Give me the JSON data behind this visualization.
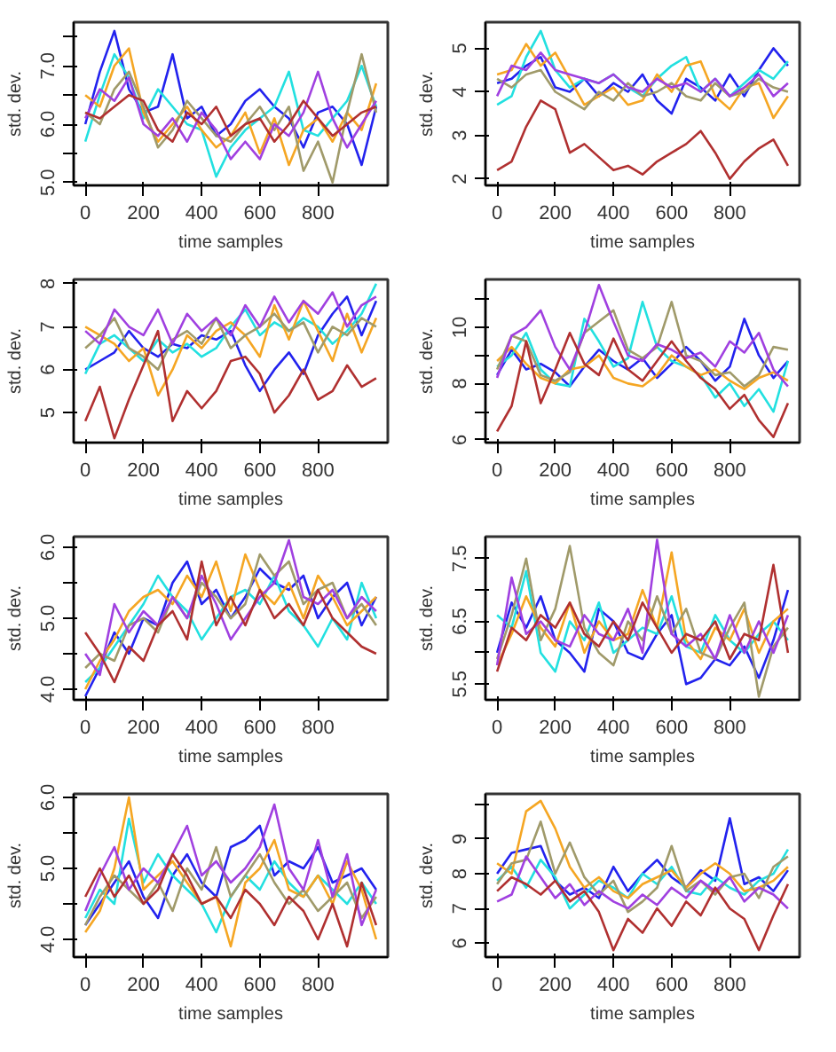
{
  "chart_data": [
    {
      "type": "line",
      "xlabel": "time samples",
      "ylabel": "std. dev.",
      "grid": false,
      "x": [
        0,
        50,
        100,
        150,
        200,
        250,
        300,
        350,
        400,
        450,
        500,
        550,
        600,
        650,
        700,
        750,
        800,
        850,
        900,
        950,
        1000
      ],
      "xlim": [
        -40,
        1040
      ],
      "xticks": [
        0,
        200,
        400,
        600,
        800
      ],
      "ylim": [
        4.95,
        7.75
      ],
      "yticks": [
        {
          "value": 5,
          "label": "5.0"
        },
        {
          "value": 5.5,
          "label": null
        },
        {
          "value": 6,
          "label": "6.0"
        },
        {
          "value": 6.5,
          "label": null
        },
        {
          "value": 7,
          "label": "7.0"
        },
        {
          "value": 7.5,
          "label": null
        }
      ],
      "series": [
        {
          "color": "#2222ee",
          "values": [
            6.0,
            6.9,
            7.6,
            6.6,
            6.2,
            6.3,
            7.2,
            6.1,
            6.3,
            5.8,
            6.0,
            6.4,
            6.6,
            6.3,
            6.1,
            5.6,
            6.2,
            6.3,
            6.0,
            5.3,
            6.3
          ]
        },
        {
          "color": "#22e0e0",
          "values": [
            5.7,
            6.5,
            7.2,
            6.8,
            6.1,
            6.6,
            6.3,
            6.0,
            5.9,
            5.1,
            5.6,
            5.9,
            6.1,
            6.3,
            6.9,
            5.9,
            5.8,
            6.1,
            6.4,
            7.0,
            6.3
          ]
        },
        {
          "color": "#f5a623",
          "values": [
            6.5,
            6.3,
            7.0,
            7.3,
            6.2,
            5.7,
            6.0,
            6.3,
            5.9,
            5.6,
            5.8,
            6.2,
            5.5,
            6.1,
            5.3,
            5.9,
            6.1,
            5.7,
            6.2,
            5.9,
            6.7
          ]
        },
        {
          "color": "#a09a6a",
          "values": [
            6.2,
            6.0,
            6.6,
            6.9,
            6.3,
            5.6,
            5.9,
            6.4,
            6.1,
            5.8,
            5.7,
            6.0,
            6.3,
            5.9,
            6.3,
            5.2,
            5.7,
            5.0,
            6.2,
            7.2,
            6.2
          ]
        },
        {
          "color": "#a040e0",
          "values": [
            6.1,
            6.6,
            6.4,
            6.8,
            6.0,
            5.8,
            6.1,
            5.7,
            6.2,
            5.9,
            5.4,
            5.7,
            5.4,
            6.0,
            5.8,
            6.2,
            6.9,
            6.1,
            5.6,
            6.0,
            6.4
          ]
        },
        {
          "color": "#b03030",
          "values": [
            6.2,
            6.1,
            6.3,
            6.5,
            6.4,
            5.9,
            5.7,
            6.2,
            6.0,
            6.3,
            5.8,
            6.0,
            6.1,
            5.7,
            6.0,
            6.4,
            6.1,
            5.8,
            6.0,
            6.2,
            6.3
          ]
        }
      ]
    },
    {
      "type": "line",
      "xlabel": "time samples",
      "ylabel": "std. dev.",
      "grid": false,
      "x": [
        0,
        50,
        100,
        150,
        200,
        250,
        300,
        350,
        400,
        450,
        500,
        550,
        600,
        650,
        700,
        750,
        800,
        850,
        900,
        950,
        1000
      ],
      "xlim": [
        -40,
        1040
      ],
      "xticks": [
        0,
        200,
        400,
        600,
        800
      ],
      "ylim": [
        1.85,
        5.6
      ],
      "yticks": [
        2,
        3,
        4,
        5
      ],
      "series": [
        {
          "color": "#2222ee",
          "values": [
            4.2,
            4.3,
            4.6,
            4.8,
            4.1,
            4.0,
            4.3,
            3.9,
            4.2,
            4.0,
            4.4,
            3.8,
            3.5,
            4.3,
            4.1,
            3.8,
            4.4,
            3.9,
            4.5,
            5.0,
            4.6
          ]
        },
        {
          "color": "#22e0e0",
          "values": [
            3.7,
            3.9,
            4.8,
            5.4,
            4.5,
            4.1,
            4.3,
            4.2,
            4.4,
            4.1,
            3.9,
            4.3,
            4.6,
            4.8,
            4.0,
            4.3,
            3.9,
            4.2,
            4.5,
            4.3,
            4.7
          ]
        },
        {
          "color": "#f5a623",
          "values": [
            4.4,
            4.5,
            5.1,
            4.6,
            4.9,
            4.3,
            3.7,
            3.9,
            4.1,
            3.7,
            3.8,
            4.4,
            4.0,
            4.6,
            4.7,
            3.9,
            3.6,
            4.1,
            4.2,
            3.4,
            3.9
          ]
        },
        {
          "color": "#a09a6a",
          "values": [
            4.3,
            4.1,
            4.4,
            4.5,
            4.0,
            3.8,
            3.6,
            4.0,
            3.8,
            4.2,
            3.9,
            4.0,
            4.2,
            3.9,
            3.8,
            4.2,
            3.9,
            4.0,
            4.3,
            4.1,
            4.0
          ]
        },
        {
          "color": "#a040e0",
          "values": [
            3.9,
            4.6,
            4.5,
            4.9,
            4.5,
            4.4,
            4.3,
            4.2,
            4.4,
            4.1,
            4.0,
            4.3,
            4.1,
            4.2,
            4.0,
            4.3,
            3.9,
            4.1,
            4.4,
            3.9,
            4.2
          ]
        },
        {
          "color": "#b03030",
          "values": [
            2.2,
            2.4,
            3.2,
            3.8,
            3.6,
            2.6,
            2.8,
            2.5,
            2.2,
            2.3,
            2.1,
            2.4,
            2.6,
            2.8,
            3.1,
            2.6,
            2.0,
            2.4,
            2.7,
            2.9,
            2.3
          ]
        }
      ]
    },
    {
      "type": "line",
      "xlabel": "time samples",
      "ylabel": "std. dev.",
      "grid": false,
      "x": [
        0,
        50,
        100,
        150,
        200,
        250,
        300,
        350,
        400,
        450,
        500,
        550,
        600,
        650,
        700,
        750,
        800,
        850,
        900,
        950,
        1000
      ],
      "xlim": [
        -40,
        1040
      ],
      "xticks": [
        0,
        200,
        400,
        600,
        800
      ],
      "ylim": [
        4.3,
        8.1
      ],
      "yticks": [
        5,
        6,
        7,
        8
      ],
      "series": [
        {
          "color": "#2222ee",
          "values": [
            6.0,
            6.2,
            6.4,
            6.9,
            6.5,
            6.3,
            6.6,
            6.5,
            6.8,
            6.7,
            6.9,
            6.1,
            5.5,
            6.0,
            6.4,
            5.9,
            6.8,
            7.3,
            7.7,
            6.8,
            7.6
          ]
        },
        {
          "color": "#22e0e0",
          "values": [
            5.9,
            6.6,
            6.8,
            6.5,
            6.2,
            6.7,
            6.4,
            6.6,
            6.3,
            6.5,
            7.0,
            7.4,
            6.8,
            7.1,
            6.9,
            7.2,
            7.0,
            6.6,
            6.9,
            7.3,
            8.0
          ]
        },
        {
          "color": "#f5a623",
          "values": [
            7.0,
            6.8,
            6.6,
            6.2,
            6.5,
            5.4,
            6.0,
            6.8,
            6.5,
            6.9,
            7.1,
            6.8,
            6.3,
            7.5,
            6.7,
            7.6,
            6.9,
            6.2,
            7.3,
            6.4,
            7.2
          ]
        },
        {
          "color": "#a09a6a",
          "values": [
            6.5,
            6.8,
            7.2,
            6.5,
            6.3,
            6.0,
            6.7,
            6.9,
            6.6,
            7.2,
            6.5,
            6.8,
            7.0,
            7.3,
            6.9,
            7.1,
            6.4,
            7.0,
            6.8,
            7.2,
            7.0
          ]
        },
        {
          "color": "#a040e0",
          "values": [
            6.9,
            6.6,
            7.4,
            7.0,
            6.8,
            7.4,
            6.6,
            7.3,
            6.9,
            7.2,
            6.8,
            7.5,
            7.0,
            7.7,
            7.1,
            7.6,
            7.3,
            7.8,
            7.0,
            7.5,
            7.7
          ]
        },
        {
          "color": "#b03030",
          "values": [
            4.8,
            5.6,
            4.4,
            5.3,
            6.1,
            6.9,
            4.8,
            5.5,
            5.1,
            5.5,
            6.2,
            6.3,
            5.9,
            5.0,
            5.4,
            6.0,
            5.3,
            5.5,
            6.1,
            5.6,
            5.8
          ]
        }
      ]
    },
    {
      "type": "line",
      "xlabel": "time samples",
      "ylabel": "std. dev.",
      "grid": false,
      "x": [
        0,
        50,
        100,
        150,
        200,
        250,
        300,
        350,
        400,
        450,
        500,
        550,
        600,
        650,
        700,
        750,
        800,
        850,
        900,
        950,
        1000
      ],
      "xlim": [
        -40,
        1040
      ],
      "xticks": [
        0,
        200,
        400,
        600,
        800
      ],
      "ylim": [
        5.9,
        11.7
      ],
      "yticks": [
        6,
        {
          "value": 7,
          "label": null
        },
        8,
        {
          "value": 9,
          "label": null
        },
        10,
        {
          "value": 11,
          "label": null
        }
      ],
      "series": [
        {
          "color": "#2222ee",
          "values": [
            8.3,
            9.2,
            8.5,
            8.7,
            8.4,
            7.9,
            8.6,
            9.2,
            8.8,
            8.5,
            8.9,
            8.2,
            8.7,
            9.3,
            8.8,
            8.1,
            8.6,
            10.3,
            9.0,
            8.2,
            8.8
          ]
        },
        {
          "color": "#22e0e0",
          "values": [
            8.6,
            9.0,
            9.8,
            8.5,
            8.0,
            7.9,
            10.3,
            9.5,
            8.6,
            8.9,
            10.9,
            9.3,
            8.8,
            8.6,
            8.3,
            7.5,
            8.0,
            7.2,
            7.8,
            7.0,
            8.8
          ]
        },
        {
          "color": "#f5a623",
          "values": [
            8.8,
            9.3,
            8.7,
            8.2,
            8.0,
            8.5,
            8.6,
            9.0,
            8.2,
            8.0,
            7.9,
            8.3,
            9.0,
            8.6,
            8.3,
            8.5,
            8.1,
            7.8,
            8.2,
            8.4,
            8.1
          ]
        },
        {
          "color": "#a09a6a",
          "values": [
            8.5,
            9.7,
            9.5,
            8.3,
            8.1,
            8.4,
            9.8,
            10.2,
            10.6,
            9.2,
            8.9,
            9.3,
            10.9,
            9.0,
            8.8,
            8.3,
            8.4,
            7.9,
            8.3,
            9.3,
            9.2
          ]
        },
        {
          "color": "#a040e0",
          "values": [
            8.2,
            9.7,
            10.0,
            10.6,
            9.3,
            8.5,
            9.8,
            11.5,
            10.2,
            9.0,
            8.8,
            9.4,
            9.2,
            8.9,
            9.1,
            8.6,
            9.5,
            9.1,
            9.8,
            8.5,
            7.9
          ]
        },
        {
          "color": "#b03030",
          "values": [
            6.3,
            7.2,
            9.5,
            7.3,
            8.5,
            9.8,
            8.7,
            8.3,
            9.6,
            8.5,
            8.1,
            8.8,
            9.5,
            8.8,
            8.2,
            7.8,
            7.1,
            7.6,
            6.7,
            6.1,
            7.3
          ]
        }
      ]
    },
    {
      "type": "line",
      "xlabel": "time samples",
      "ylabel": "std. dev.",
      "grid": false,
      "x": [
        0,
        50,
        100,
        150,
        200,
        250,
        300,
        350,
        400,
        450,
        500,
        550,
        600,
        650,
        700,
        750,
        800,
        850,
        900,
        950,
        1000
      ],
      "xlim": [
        -40,
        1040
      ],
      "xticks": [
        0,
        200,
        400,
        600,
        800
      ],
      "ylim": [
        3.85,
        6.15
      ],
      "yticks": [
        {
          "value": 4,
          "label": "4.0"
        },
        {
          "value": 4.5,
          "label": null
        },
        {
          "value": 5,
          "label": "5.0"
        },
        {
          "value": 5.5,
          "label": null
        },
        {
          "value": 6,
          "label": "6.0"
        }
      ],
      "series": [
        {
          "color": "#2222ee",
          "values": [
            3.9,
            4.3,
            4.8,
            4.5,
            5.0,
            4.9,
            5.5,
            5.8,
            5.2,
            5.4,
            5.0,
            5.3,
            5.7,
            5.5,
            5.4,
            5.6,
            5.0,
            5.3,
            5.5,
            4.9,
            5.3
          ]
        },
        {
          "color": "#22e0e0",
          "values": [
            4.1,
            4.3,
            4.6,
            4.9,
            5.2,
            5.6,
            5.3,
            5.1,
            4.7,
            5.0,
            5.3,
            5.4,
            5.2,
            5.6,
            5.1,
            4.9,
            4.6,
            5.0,
            4.7,
            5.5,
            5.0
          ]
        },
        {
          "color": "#f5a623",
          "values": [
            4.0,
            4.4,
            4.7,
            5.1,
            5.3,
            5.4,
            5.2,
            5.6,
            5.3,
            5.8,
            5.1,
            5.9,
            5.4,
            5.2,
            5.5,
            5.0,
            5.6,
            5.3,
            4.9,
            5.1,
            5.3
          ]
        },
        {
          "color": "#a09a6a",
          "values": [
            4.3,
            4.5,
            4.4,
            4.9,
            5.0,
            4.8,
            5.3,
            5.0,
            5.5,
            5.3,
            5.0,
            5.2,
            5.9,
            5.6,
            5.8,
            5.2,
            5.4,
            5.5,
            5.0,
            5.2,
            4.9
          ]
        },
        {
          "color": "#a040e0",
          "values": [
            4.5,
            4.2,
            5.2,
            4.8,
            5.1,
            4.9,
            5.3,
            5.0,
            5.6,
            5.2,
            4.7,
            5.0,
            5.3,
            5.5,
            6.1,
            5.3,
            5.2,
            5.4,
            5.0,
            5.3,
            5.1
          ]
        },
        {
          "color": "#b03030",
          "values": [
            4.8,
            4.5,
            4.1,
            4.6,
            4.4,
            4.9,
            5.1,
            4.7,
            5.8,
            4.9,
            5.3,
            4.9,
            5.4,
            5.0,
            5.2,
            4.9,
            5.4,
            5.0,
            4.8,
            4.6,
            4.5
          ]
        }
      ]
    },
    {
      "type": "line",
      "xlabel": "time samples",
      "ylabel": "std. dev.",
      "grid": false,
      "x": [
        0,
        50,
        100,
        150,
        200,
        250,
        300,
        350,
        400,
        450,
        500,
        550,
        600,
        650,
        700,
        750,
        800,
        850,
        900,
        950,
        1000
      ],
      "xlim": [
        -40,
        1040
      ],
      "xticks": [
        0,
        200,
        400,
        600,
        800
      ],
      "ylim": [
        5.25,
        7.85
      ],
      "yticks": [
        5.5,
        {
          "value": 6,
          "label": null
        },
        6.5,
        {
          "value": 7,
          "label": null
        },
        7.5
      ],
      "series": [
        {
          "color": "#2222ee",
          "values": [
            6.0,
            6.8,
            6.4,
            6.9,
            6.2,
            6.0,
            5.7,
            6.7,
            6.5,
            6.0,
            5.9,
            6.3,
            6.6,
            5.5,
            5.6,
            5.9,
            5.8,
            6.1,
            5.6,
            6.2,
            7.0
          ]
        },
        {
          "color": "#22e0e0",
          "values": [
            6.6,
            6.4,
            7.3,
            6.0,
            5.7,
            6.5,
            6.2,
            6.8,
            6.0,
            6.2,
            6.4,
            6.3,
            6.9,
            6.1,
            6.0,
            6.6,
            6.2,
            6.0,
            6.3,
            6.5,
            6.2
          ]
        },
        {
          "color": "#f5a623",
          "values": [
            5.8,
            6.3,
            6.9,
            6.4,
            6.1,
            6.8,
            6.0,
            6.5,
            6.2,
            6.3,
            7.0,
            6.4,
            7.6,
            6.2,
            5.9,
            6.4,
            6.2,
            6.7,
            6.0,
            6.5,
            6.7
          ]
        },
        {
          "color": "#a09a6a",
          "values": [
            5.9,
            6.6,
            7.5,
            6.2,
            6.7,
            7.7,
            6.4,
            6.0,
            5.8,
            6.5,
            6.2,
            6.9,
            6.3,
            6.7,
            6.0,
            5.9,
            6.4,
            6.8,
            5.3,
            6.1,
            6.4
          ]
        },
        {
          "color": "#a040e0",
          "values": [
            5.8,
            7.2,
            6.3,
            6.5,
            6.2,
            6.1,
            6.6,
            6.3,
            6.2,
            6.7,
            6.0,
            7.8,
            6.3,
            6.1,
            6.3,
            5.9,
            6.6,
            6.0,
            6.5,
            6.0,
            6.6
          ]
        },
        {
          "color": "#b03030",
          "values": [
            5.7,
            6.4,
            6.2,
            6.6,
            6.4,
            6.8,
            6.3,
            6.1,
            6.5,
            6.2,
            6.8,
            6.4,
            6.0,
            6.3,
            6.2,
            6.5,
            5.9,
            6.3,
            6.2,
            7.4,
            6.0
          ]
        }
      ]
    },
    {
      "type": "line",
      "xlabel": "time samples",
      "ylabel": "std. dev.",
      "grid": false,
      "x": [
        0,
        50,
        100,
        150,
        200,
        250,
        300,
        350,
        400,
        450,
        500,
        550,
        600,
        650,
        700,
        750,
        800,
        850,
        900,
        950,
        1000
      ],
      "xlim": [
        -40,
        1040
      ],
      "xticks": [
        0,
        200,
        400,
        600,
        800
      ],
      "ylim": [
        3.75,
        6.05
      ],
      "yticks": [
        {
          "value": 4,
          "label": "4.0"
        },
        {
          "value": 4.5,
          "label": null
        },
        {
          "value": 5,
          "label": "5.0"
        },
        {
          "value": 5.5,
          "label": null
        },
        {
          "value": 6,
          "label": "6.0"
        }
      ],
      "series": [
        {
          "color": "#2222ee",
          "values": [
            4.2,
            4.5,
            4.8,
            5.1,
            4.6,
            4.3,
            4.9,
            5.2,
            4.8,
            4.6,
            5.3,
            5.4,
            5.6,
            4.9,
            5.1,
            5.0,
            5.3,
            4.8,
            4.9,
            5.0,
            4.7
          ]
        },
        {
          "color": "#22e0e0",
          "values": [
            4.3,
            4.7,
            4.5,
            5.7,
            4.8,
            5.2,
            4.9,
            4.7,
            4.5,
            4.1,
            4.6,
            4.9,
            4.7,
            5.1,
            4.8,
            4.6,
            4.9,
            4.7,
            4.5,
            4.8,
            4.5
          ]
        },
        {
          "color": "#f5a623",
          "values": [
            4.1,
            4.4,
            5.0,
            6.0,
            4.7,
            4.9,
            5.1,
            4.8,
            4.5,
            4.6,
            3.9,
            4.8,
            5.0,
            5.4,
            4.7,
            4.6,
            4.9,
            4.5,
            5.1,
            4.7,
            4.0
          ]
        },
        {
          "color": "#a09a6a",
          "values": [
            4.2,
            4.6,
            4.9,
            4.7,
            4.5,
            4.8,
            4.4,
            5.0,
            4.7,
            5.3,
            4.6,
            4.9,
            5.2,
            4.8,
            4.5,
            4.7,
            4.4,
            4.6,
            4.8,
            4.3,
            4.6
          ]
        },
        {
          "color": "#a040e0",
          "values": [
            4.4,
            4.9,
            5.3,
            4.7,
            5.0,
            4.8,
            5.2,
            5.6,
            4.9,
            5.1,
            4.8,
            5.0,
            5.3,
            5.9,
            5.0,
            4.7,
            5.4,
            4.6,
            5.2,
            4.2,
            4.7
          ]
        },
        {
          "color": "#b03030",
          "values": [
            4.6,
            5.0,
            4.6,
            4.9,
            4.5,
            4.7,
            5.2,
            4.9,
            4.5,
            4.6,
            4.3,
            4.7,
            4.5,
            4.2,
            4.6,
            4.4,
            4.0,
            4.5,
            3.9,
            4.8,
            4.2
          ]
        }
      ]
    },
    {
      "type": "line",
      "xlabel": "time samples",
      "ylabel": "std. dev.",
      "grid": false,
      "x": [
        0,
        50,
        100,
        150,
        200,
        250,
        300,
        350,
        400,
        450,
        500,
        550,
        600,
        650,
        700,
        750,
        800,
        850,
        900,
        950,
        1000
      ],
      "xlim": [
        -40,
        1040
      ],
      "xticks": [
        0,
        200,
        400,
        600,
        800
      ],
      "ylim": [
        5.6,
        10.3
      ],
      "yticks": [
        6,
        7,
        8,
        9,
        {
          "value": 10,
          "label": null
        }
      ],
      "series": [
        {
          "color": "#2222ee",
          "values": [
            8.0,
            8.6,
            8.7,
            8.8,
            7.8,
            7.4,
            7.6,
            7.3,
            8.2,
            7.5,
            8.0,
            8.4,
            7.9,
            7.6,
            8.1,
            7.8,
            9.6,
            7.7,
            7.9,
            7.5,
            8.1
          ]
        },
        {
          "color": "#22e0e0",
          "values": [
            7.8,
            8.2,
            7.6,
            8.4,
            7.9,
            7.0,
            7.4,
            7.8,
            7.6,
            7.3,
            8.0,
            7.7,
            8.2,
            7.5,
            7.4,
            7.9,
            7.6,
            7.4,
            7.8,
            8.0,
            8.7
          ]
        },
        {
          "color": "#f5a623",
          "values": [
            8.3,
            8.0,
            9.8,
            10.1,
            9.3,
            8.2,
            7.6,
            7.9,
            7.5,
            7.3,
            7.7,
            7.9,
            8.1,
            7.6,
            8.0,
            8.3,
            8.0,
            7.5,
            7.6,
            7.8,
            8.2
          ]
        },
        {
          "color": "#a09a6a",
          "values": [
            7.7,
            8.3,
            8.4,
            9.5,
            8.0,
            8.9,
            7.9,
            7.4,
            7.8,
            6.9,
            7.2,
            7.6,
            8.8,
            7.5,
            7.8,
            7.4,
            7.9,
            8.0,
            7.3,
            8.2,
            8.5
          ]
        },
        {
          "color": "#a040e0",
          "values": [
            7.2,
            7.4,
            8.5,
            7.9,
            7.3,
            7.7,
            7.1,
            7.5,
            7.2,
            7.0,
            7.4,
            7.1,
            7.6,
            7.3,
            7.8,
            7.5,
            7.9,
            7.2,
            7.6,
            7.4,
            7.0
          ]
        },
        {
          "color": "#b03030",
          "values": [
            7.5,
            7.9,
            7.7,
            7.4,
            7.8,
            7.2,
            7.5,
            6.9,
            5.8,
            6.7,
            6.3,
            7.0,
            6.5,
            7.2,
            6.8,
            7.6,
            7.0,
            6.7,
            5.8,
            6.8,
            7.7
          ]
        }
      ]
    }
  ]
}
